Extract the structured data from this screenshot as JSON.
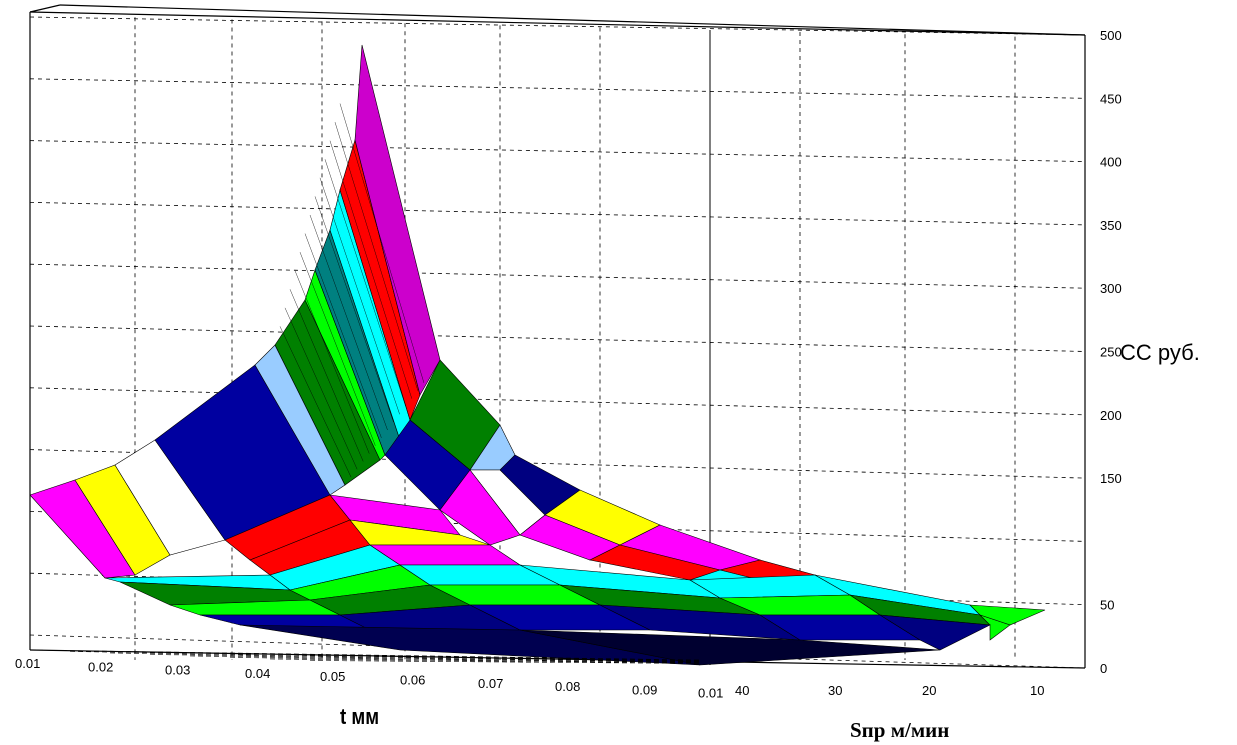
{
  "chart_data": {
    "type": "surface",
    "zlabel": "СС руб.",
    "xlabel": "t мм",
    "ylabel": "Sпр м/мин",
    "z_ticks": [
      "0",
      "50",
      "",
      "150",
      "200",
      "250",
      "300",
      "350",
      "400",
      "450",
      "500"
    ],
    "t_ticks": [
      "0.01",
      "0.02",
      "0.03",
      "0.04",
      "0.05",
      "0.06",
      "0.07",
      "0.08",
      "0.09",
      "0.01"
    ],
    "s_ticks": [
      "40",
      "30",
      "20",
      "10"
    ],
    "zlim": [
      0,
      500
    ],
    "grid": true,
    "band_colors": [
      "#ff00ff",
      "#ffff00",
      "#ffffff",
      "#0000a0",
      "#99ccff",
      "#008000",
      "#00ff00",
      "#008080",
      "#00ffff",
      "#ff0000",
      "#cc00cc",
      "#000080"
    ],
    "description_values": {
      "peak_cost": 490,
      "peak_at_t": 0.05,
      "min_cost": 0
    }
  }
}
